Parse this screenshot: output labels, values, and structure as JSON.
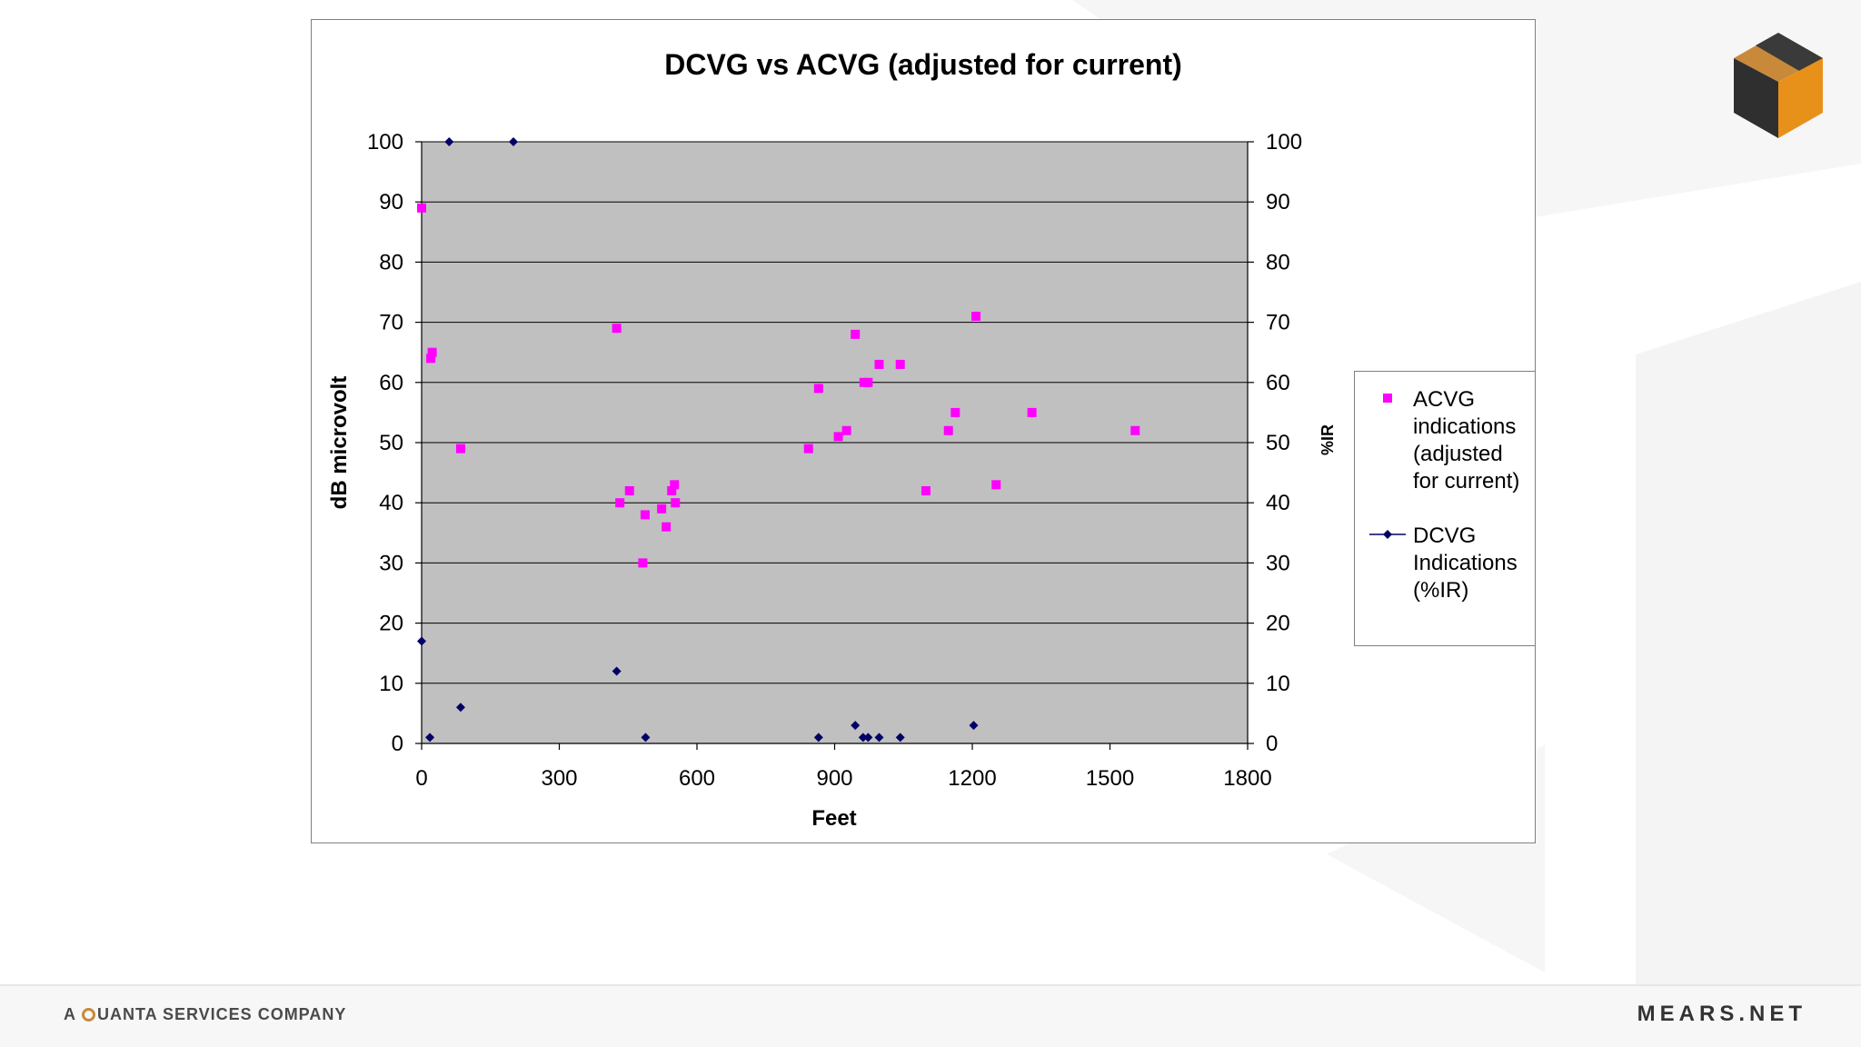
{
  "brand": {
    "tagline_prefix": "A",
    "tagline": "UANTA SERVICES COMPANY",
    "site": "MEARS.NET"
  },
  "icons": {
    "logo": "cube-logo-icon",
    "tagline_mark": "quanta-q-icon"
  },
  "colors": {
    "acvg": "#ff00ff",
    "dcvg": "#000066",
    "plot_bg": "#c0c0c0",
    "accent": "#e8911a"
  },
  "chart_data": {
    "type": "scatter",
    "title": "DCVG vs ACVG  (adjusted for current)",
    "xlabel": "Feet",
    "ylabel": "dB microvolt",
    "y2label": "%IR",
    "xlim": [
      0,
      1800
    ],
    "ylim": [
      0,
      100
    ],
    "y2lim": [
      0,
      100
    ],
    "xticks": [
      0,
      300,
      600,
      900,
      1200,
      1500,
      1800
    ],
    "yticks": [
      0,
      10,
      20,
      30,
      40,
      50,
      60,
      70,
      80,
      90,
      100
    ],
    "grid": "horizontal",
    "legend_position": "right",
    "series": [
      {
        "name": "ACVG indications (adjusted for current)",
        "axis": "left",
        "marker": "square",
        "color": "#ff00ff",
        "points": [
          [
            0,
            89
          ],
          [
            20,
            64
          ],
          [
            23,
            65
          ],
          [
            85,
            49
          ],
          [
            425,
            69
          ],
          [
            432,
            40
          ],
          [
            453,
            42
          ],
          [
            482,
            30
          ],
          [
            487,
            38
          ],
          [
            523,
            39
          ],
          [
            533,
            36
          ],
          [
            545,
            42
          ],
          [
            551,
            43
          ],
          [
            553,
            40
          ],
          [
            843,
            49
          ],
          [
            865,
            59
          ],
          [
            908,
            51
          ],
          [
            926,
            52
          ],
          [
            945,
            68
          ],
          [
            964,
            60
          ],
          [
            973,
            60
          ],
          [
            997,
            63
          ],
          [
            1043,
            63
          ],
          [
            1099,
            42
          ],
          [
            1148,
            52
          ],
          [
            1163,
            55
          ],
          [
            1208,
            71
          ],
          [
            1252,
            43
          ],
          [
            1330,
            55
          ],
          [
            1555,
            52
          ]
        ]
      },
      {
        "name": "DCVG Indications (%IR)",
        "axis": "right",
        "marker": "diamond",
        "color": "#000066",
        "points": [
          [
            0,
            17
          ],
          [
            18,
            1
          ],
          [
            60,
            100
          ],
          [
            85,
            6
          ],
          [
            200,
            100
          ],
          [
            425,
            12
          ],
          [
            488,
            1
          ],
          [
            865,
            1
          ],
          [
            945,
            3
          ],
          [
            962,
            1
          ],
          [
            973,
            1
          ],
          [
            997,
            1
          ],
          [
            1043,
            1
          ],
          [
            1203,
            3
          ]
        ]
      }
    ]
  }
}
